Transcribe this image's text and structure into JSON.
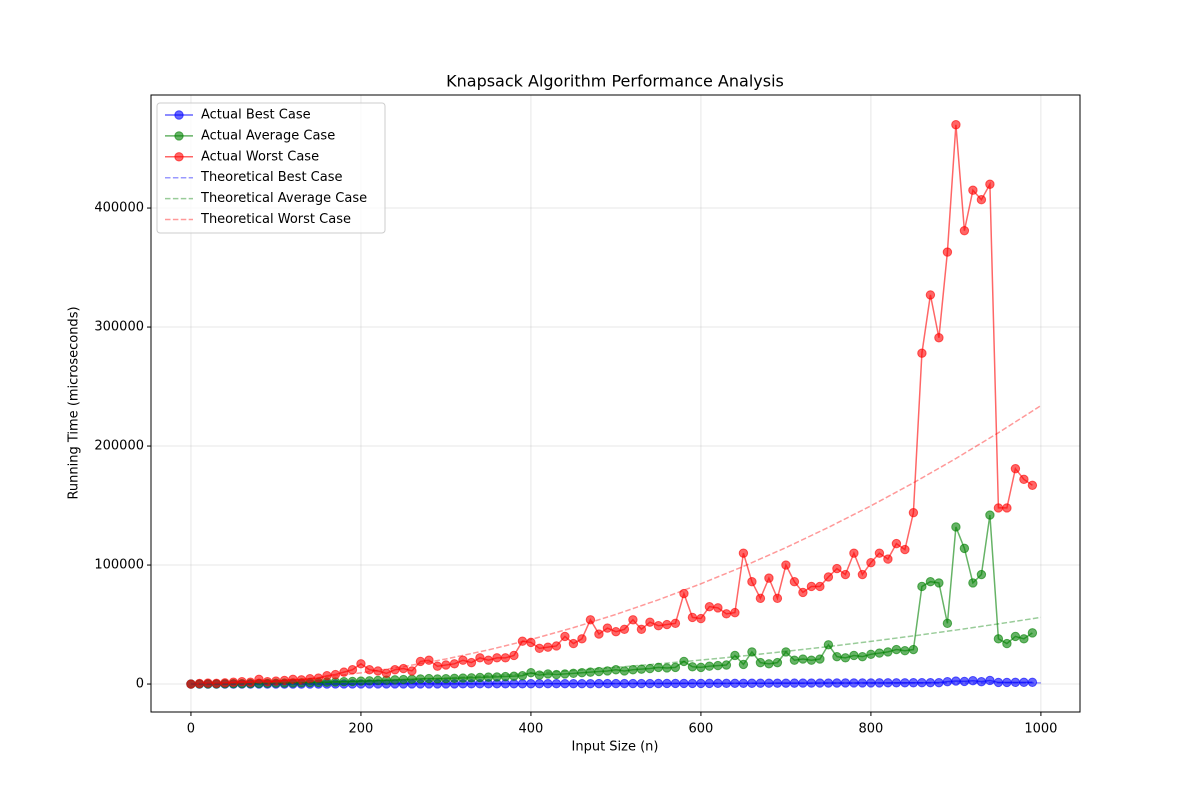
{
  "chart_data": {
    "type": "line",
    "title": "Knapsack Algorithm Performance Analysis",
    "x_label": "Input Size (n)",
    "y_label": "Running Time (microseconds)",
    "xlim": [
      -47,
      1046
    ],
    "ylim": [
      -23500,
      495000
    ],
    "xticks": [
      0,
      200,
      400,
      600,
      800,
      1000
    ],
    "yticks": [
      0,
      100000,
      200000,
      300000,
      400000
    ],
    "grid": true,
    "legend": "upper left",
    "series": [
      {
        "name": "Actual Best Case",
        "color": "#0000ff",
        "style": "marker",
        "x": [
          0,
          10,
          20,
          30,
          40,
          50,
          60,
          70,
          80,
          90,
          100,
          110,
          120,
          130,
          140,
          150,
          160,
          170,
          180,
          190,
          200,
          210,
          220,
          230,
          240,
          250,
          260,
          270,
          280,
          290,
          300,
          310,
          320,
          330,
          340,
          350,
          360,
          370,
          380,
          390,
          400,
          410,
          420,
          430,
          440,
          450,
          460,
          470,
          480,
          490,
          500,
          510,
          520,
          530,
          540,
          550,
          560,
          570,
          580,
          590,
          600,
          610,
          620,
          630,
          640,
          650,
          660,
          670,
          680,
          690,
          700,
          710,
          720,
          730,
          740,
          750,
          760,
          770,
          780,
          790,
          800,
          810,
          820,
          830,
          840,
          850,
          860,
          870,
          880,
          890,
          900,
          910,
          920,
          930,
          940,
          950,
          960,
          970,
          980,
          990
        ],
        "values": [
          0,
          0,
          1,
          1,
          2,
          4,
          5,
          7,
          10,
          12,
          15,
          18,
          22,
          25,
          29,
          34,
          38,
          43,
          49,
          54,
          60,
          66,
          73,
          79,
          86,
          94,
          101,
          109,
          118,
          126,
          135,
          144,
          154,
          163,
          173,
          184,
          194,
          205,
          217,
          228,
          240,
          252,
          265,
          277,
          290,
          304,
          317,
          331,
          346,
          360,
          375,
          390,
          406,
          421,
          437,
          454,
          470,
          487,
          505,
          522,
          540,
          558,
          577,
          595,
          614,
          634,
          653,
          673,
          694,
          714,
          735,
          756,
          778,
          799,
          821,
          844,
          866,
          889,
          913,
          936,
          960,
          984,
          1009,
          1033,
          1058,
          1084,
          1109,
          1135,
          1162,
          2000,
          2500,
          2200,
          2800,
          2000,
          3000,
          1354,
          1382,
          1411,
          1441,
          1470
        ]
      },
      {
        "name": "Actual Average Case",
        "color": "#008000",
        "style": "marker",
        "x": [
          0,
          10,
          20,
          30,
          40,
          50,
          60,
          70,
          80,
          90,
          100,
          110,
          120,
          130,
          140,
          150,
          160,
          170,
          180,
          190,
          200,
          210,
          220,
          230,
          240,
          250,
          260,
          270,
          280,
          290,
          300,
          310,
          320,
          330,
          340,
          350,
          360,
          370,
          380,
          390,
          400,
          410,
          420,
          430,
          440,
          450,
          460,
          470,
          480,
          490,
          500,
          510,
          520,
          530,
          540,
          550,
          560,
          570,
          580,
          590,
          600,
          610,
          620,
          630,
          640,
          650,
          660,
          670,
          680,
          690,
          700,
          710,
          720,
          730,
          740,
          750,
          760,
          770,
          780,
          790,
          800,
          810,
          820,
          830,
          840,
          850,
          860,
          870,
          880,
          890,
          900,
          910,
          920,
          930,
          940,
          950,
          960,
          970,
          980,
          990
        ],
        "values": [
          0,
          50,
          100,
          100,
          200,
          300,
          300,
          400,
          500,
          600,
          700,
          800,
          900,
          1000,
          1200,
          1400,
          1600,
          1800,
          2000,
          2200,
          2500,
          2700,
          3000,
          3200,
          3500,
          3800,
          4000,
          4300,
          4600,
          4300,
          4500,
          4800,
          5000,
          5200,
          5500,
          5800,
          6000,
          6300,
          6600,
          7000,
          9500,
          7500,
          8500,
          8000,
          8500,
          9000,
          9500,
          10000,
          10500,
          11000,
          12000,
          11000,
          12000,
          12500,
          13000,
          14000,
          13500,
          14000,
          19000,
          14500,
          14000,
          15000,
          15500,
          16000,
          24000,
          16500,
          27000,
          18000,
          17000,
          18000,
          27000,
          20000,
          21000,
          20000,
          21000,
          33000,
          23000,
          22000,
          24000,
          23000,
          25000,
          26000,
          27000,
          29000,
          28000,
          29000,
          82000,
          86000,
          85000,
          51000,
          132000,
          114000,
          85000,
          92000,
          142000,
          38000,
          34000,
          40000,
          38000,
          43000
        ]
      },
      {
        "name": "Actual Worst Case",
        "color": "#ff0000",
        "style": "marker",
        "x": [
          0,
          10,
          20,
          30,
          40,
          50,
          60,
          70,
          80,
          90,
          100,
          110,
          120,
          130,
          140,
          150,
          160,
          170,
          180,
          190,
          200,
          210,
          220,
          230,
          240,
          250,
          260,
          270,
          280,
          290,
          300,
          310,
          320,
          330,
          340,
          350,
          360,
          370,
          380,
          390,
          400,
          410,
          420,
          430,
          440,
          450,
          460,
          470,
          480,
          490,
          500,
          510,
          520,
          530,
          540,
          550,
          560,
          570,
          580,
          590,
          600,
          610,
          620,
          630,
          640,
          650,
          660,
          670,
          680,
          690,
          700,
          710,
          720,
          730,
          740,
          750,
          760,
          770,
          780,
          790,
          800,
          810,
          820,
          830,
          840,
          850,
          860,
          870,
          880,
          890,
          900,
          910,
          920,
          930,
          940,
          950,
          960,
          970,
          980,
          990
        ],
        "values": [
          0,
          500,
          800,
          600,
          1000,
          1500,
          2000,
          1500,
          4000,
          2000,
          2500,
          3000,
          4000,
          3500,
          4500,
          5000,
          7000,
          8000,
          10000,
          12000,
          17000,
          12000,
          11000,
          9000,
          12000,
          13000,
          11000,
          19000,
          20000,
          15000,
          16000,
          17000,
          20000,
          18000,
          22000,
          20000,
          22000,
          22000,
          24000,
          36000,
          35000,
          30000,
          31000,
          32000,
          40000,
          34000,
          38000,
          54000,
          42000,
          47000,
          44000,
          46000,
          54000,
          46000,
          52000,
          49000,
          50000,
          51000,
          76000,
          56000,
          55000,
          65000,
          64000,
          59000,
          60000,
          110000,
          86000,
          72000,
          89000,
          72000,
          100000,
          86000,
          77000,
          82000,
          82000,
          90000,
          97000,
          92000,
          110000,
          92000,
          102000,
          110000,
          105000,
          118000,
          113000,
          144000,
          278000,
          327000,
          291000,
          363000,
          470000,
          381000,
          415000,
          407000,
          420000,
          148000,
          148000,
          181000,
          172000,
          167000
        ]
      },
      {
        "name": "Theoretical Best Case",
        "color": "#0000ff",
        "style": "dashed",
        "x": [
          0,
          50,
          100,
          150,
          200,
          250,
          300,
          350,
          400,
          450,
          500,
          550,
          600,
          650,
          700,
          750,
          800,
          850,
          900,
          950,
          1000
        ],
        "values": [
          0,
          28,
          66,
          108,
          153,
          199,
          247,
          296,
          346,
          397,
          448,
          501,
          554,
          607,
          662,
          716,
          771,
          827,
          883,
          940,
          997
        ]
      },
      {
        "name": "Theoretical Average Case",
        "color": "#008000",
        "style": "dashed",
        "x": [
          0,
          50,
          100,
          150,
          200,
          250,
          300,
          350,
          400,
          450,
          500,
          550,
          600,
          650,
          700,
          750,
          800,
          850,
          900,
          950,
          1000
        ],
        "values": [
          0,
          140,
          560,
          1260,
          2240,
          3500,
          5040,
          6860,
          8960,
          11340,
          14000,
          16940,
          20160,
          23660,
          27440,
          31500,
          35840,
          40460,
          45360,
          50540,
          56000
        ]
      },
      {
        "name": "Theoretical Worst Case",
        "color": "#ff0000",
        "style": "dashed",
        "x": [
          0,
          50,
          100,
          150,
          200,
          250,
          300,
          350,
          400,
          450,
          500,
          550,
          600,
          650,
          700,
          750,
          800,
          850,
          900,
          950,
          1000
        ],
        "values": [
          0,
          585,
          2340,
          5265,
          9360,
          14625,
          21060,
          28665,
          37440,
          47385,
          58500,
          70785,
          84240,
          98865,
          114660,
          131625,
          149760,
          169065,
          189540,
          211185,
          234000
        ]
      }
    ]
  }
}
